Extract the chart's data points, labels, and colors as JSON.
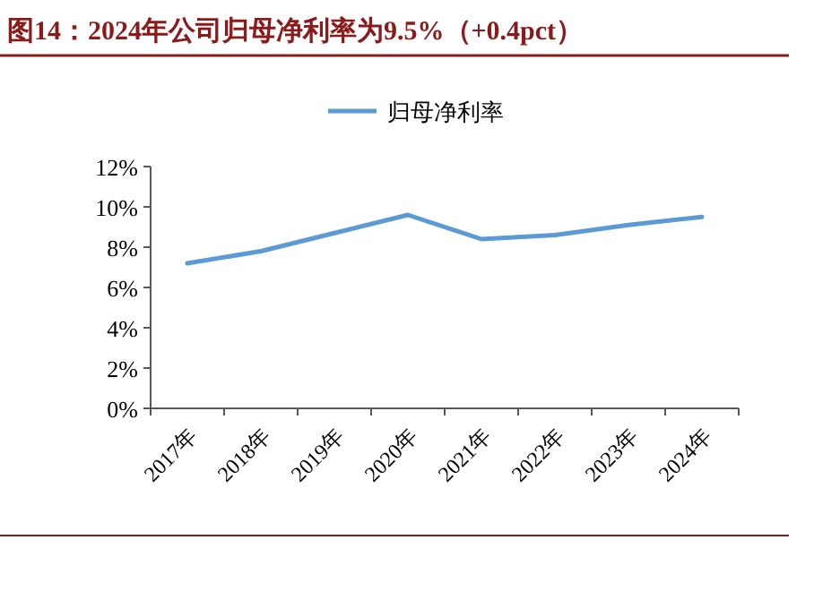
{
  "chart_data": {
    "type": "line",
    "title": "图14：2024年公司归母净利率为9.5%（+0.4pct）",
    "categories": [
      "2017年",
      "2018年",
      "2019年",
      "2020年",
      "2021年",
      "2022年",
      "2023年",
      "2024年"
    ],
    "series": [
      {
        "name": "归母净利率",
        "color": "#5b9bd5",
        "values": [
          7.2,
          7.8,
          8.7,
          9.6,
          8.4,
          8.6,
          9.1,
          9.5
        ]
      }
    ],
    "ylim": [
      0,
      12
    ],
    "yticks": [
      {
        "value": 0,
        "label": "0%"
      },
      {
        "value": 2,
        "label": "2%"
      },
      {
        "value": 4,
        "label": "4%"
      },
      {
        "value": 6,
        "label": "6%"
      },
      {
        "value": 8,
        "label": "8%"
      },
      {
        "value": 10,
        "label": "10%"
      },
      {
        "value": 12,
        "label": "12%"
      }
    ],
    "legend": "top",
    "grid": false,
    "marker": "none",
    "line_style": "solid"
  }
}
